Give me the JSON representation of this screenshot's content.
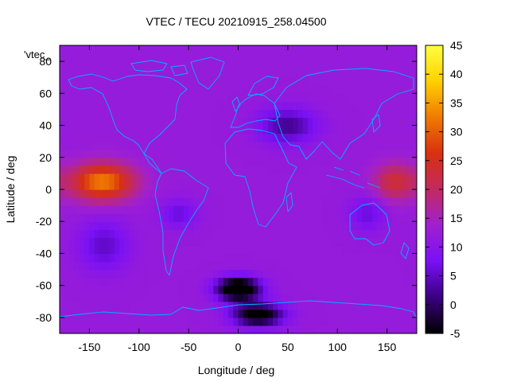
{
  "chart_data": {
    "type": "heatmap",
    "title": "VTEC / TECU 20210915_258.04500",
    "xlabel": "Longitude / deg",
    "ylabel": "Latitude / deg",
    "xlim": [
      -180,
      180
    ],
    "ylim": [
      -90,
      90
    ],
    "x_ticks": [
      -150,
      -100,
      -50,
      0,
      50,
      100,
      150
    ],
    "y_ticks": [
      -80,
      -60,
      -40,
      -20,
      0,
      20,
      40,
      60,
      80
    ],
    "colorbar": {
      "range": [
        -5,
        45
      ],
      "ticks": [
        -5,
        0,
        5,
        10,
        15,
        20,
        25,
        30,
        35,
        40,
        45
      ],
      "palette": [
        "#000000",
        "#3a0080",
        "#7a10f5",
        "#a020d0",
        "#c22a60",
        "#d83010",
        "#f07a00",
        "#ffd000",
        "#ffff40"
      ]
    },
    "overlay_label": "'vtec_",
    "coastline_color": "#00b0ff",
    "features": [
      {
        "lon": -137,
        "lat": 5,
        "lon_width": 45,
        "lat_width": 16,
        "value": 33
      },
      {
        "lon": -95,
        "lat": 8,
        "lon_width": 40,
        "lat_width": 10,
        "value": 12
      },
      {
        "lon": -60,
        "lat": -15,
        "lon_width": 25,
        "lat_width": 12,
        "value": 6
      },
      {
        "lon": -135,
        "lat": -35,
        "lon_width": 35,
        "lat_width": 22,
        "value": 5
      },
      {
        "lon": 158,
        "lat": 5,
        "lon_width": 30,
        "lat_width": 16,
        "value": 23
      },
      {
        "lon": 130,
        "lat": -15,
        "lon_width": 25,
        "lat_width": 15,
        "value": 6
      },
      {
        "lon": 50,
        "lat": 40,
        "lon_width": 40,
        "lat_width": 15,
        "value": 2
      },
      {
        "lon": 0,
        "lat": -62,
        "lon_width": 30,
        "lat_width": 10,
        "value": -13
      },
      {
        "lon": 20,
        "lat": -78,
        "lon_width": 35,
        "lat_width": 10,
        "value": -8
      }
    ],
    "background_value": 12
  }
}
